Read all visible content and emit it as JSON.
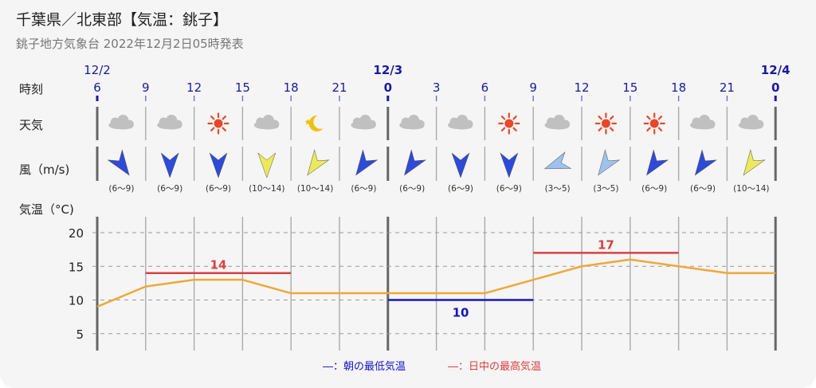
{
  "header": {
    "title": "千葉県／北東部【気温：銚子】",
    "subtitle": "銚子地方気象台 2022年12月2日05時発表"
  },
  "labels": {
    "time": "時刻",
    "weather": "天気",
    "wind": "風（m/s)",
    "temperature": "気温（°C)"
  },
  "colors": {
    "accent_blue": "#1a1aa0",
    "max_red": "#d94040",
    "min_blue": "#1414c8",
    "temp_line": "#f0a838",
    "wind_strong": "#2e4ad8",
    "wind_very_strong": "#ecea5a",
    "wind_moderate": "#9ec2ee",
    "sun": "#e8472a",
    "moon": "#f0c010",
    "cloud": "#c0c0c0"
  },
  "dates": [
    {
      "index": 0,
      "label": "12/2"
    },
    {
      "index": 6,
      "label": "12/3"
    },
    {
      "index": 14,
      "label": "12/4"
    }
  ],
  "hours": [
    "6",
    "9",
    "12",
    "15",
    "18",
    "21",
    "0",
    "3",
    "6",
    "9",
    "12",
    "15",
    "18",
    "21",
    "0"
  ],
  "weather": [
    {
      "icon": "cloud-icon"
    },
    {
      "icon": "cloud-icon"
    },
    {
      "icon": "sun-icon"
    },
    {
      "icon": "cloud-icon"
    },
    {
      "icon": "moon-icon"
    },
    {
      "icon": "cloud-icon"
    },
    {
      "icon": "cloud-icon"
    },
    {
      "icon": "cloud-icon"
    },
    {
      "icon": "sun-icon"
    },
    {
      "icon": "cloud-icon"
    },
    {
      "icon": "sun-icon"
    },
    {
      "icon": "sun-icon"
    },
    {
      "icon": "cloud-icon"
    },
    {
      "icon": "cloud-icon"
    }
  ],
  "wind": [
    {
      "direction": "northwest",
      "range": "(6～9)",
      "level": "strong"
    },
    {
      "direction": "north",
      "range": "(6～9)",
      "level": "strong"
    },
    {
      "direction": "north",
      "range": "(6～9)",
      "level": "strong"
    },
    {
      "direction": "north",
      "range": "(10～14)",
      "level": "very-strong"
    },
    {
      "direction": "southwest",
      "range": "(10～14)",
      "level": "very-strong"
    },
    {
      "direction": "southwest",
      "range": "(6～9)",
      "level": "strong"
    },
    {
      "direction": "southwest",
      "range": "(6～9)",
      "level": "strong"
    },
    {
      "direction": "north",
      "range": "(6～9)",
      "level": "strong"
    },
    {
      "direction": "north",
      "range": "(6～9)",
      "level": "strong"
    },
    {
      "direction": "west",
      "range": "(3～5)",
      "level": "moderate"
    },
    {
      "direction": "southwest",
      "range": "(3～5)",
      "level": "moderate"
    },
    {
      "direction": "southwest",
      "range": "(6～9)",
      "level": "strong"
    },
    {
      "direction": "southwest",
      "range": "(6～9)",
      "level": "strong"
    },
    {
      "direction": "southwest",
      "range": "(10～14)",
      "level": "very-strong"
    }
  ],
  "chart_data": {
    "type": "line",
    "x": [
      "12/2 6",
      "9",
      "12",
      "15",
      "18",
      "21",
      "12/3 0",
      "3",
      "6",
      "9",
      "12",
      "15",
      "18",
      "21",
      "12/4 0"
    ],
    "series": [
      {
        "values": [
          9,
          12,
          13,
          13,
          11,
          11,
          11,
          11,
          11,
          13,
          15,
          16,
          15,
          14,
          14
        ]
      }
    ],
    "daily_max": [
      {
        "value": 14,
        "label": "14",
        "start_index": 1,
        "end_index": 4
      },
      {
        "value": 17,
        "label": "17",
        "start_index": 9,
        "end_index": 12
      }
    ],
    "daily_min": [
      {
        "value": 10,
        "label": "10",
        "start_index": 6,
        "end_index": 9
      }
    ],
    "yticks": [
      "20",
      "15",
      "10",
      "5"
    ],
    "ylim": [
      2,
      22
    ],
    "grid": true,
    "legend": [
      {
        "label": "―：朝の最低気温",
        "kind": "min"
      },
      {
        "label": "―：日中の最高気温",
        "kind": "max"
      }
    ],
    "legend_position": "bottom-center"
  }
}
